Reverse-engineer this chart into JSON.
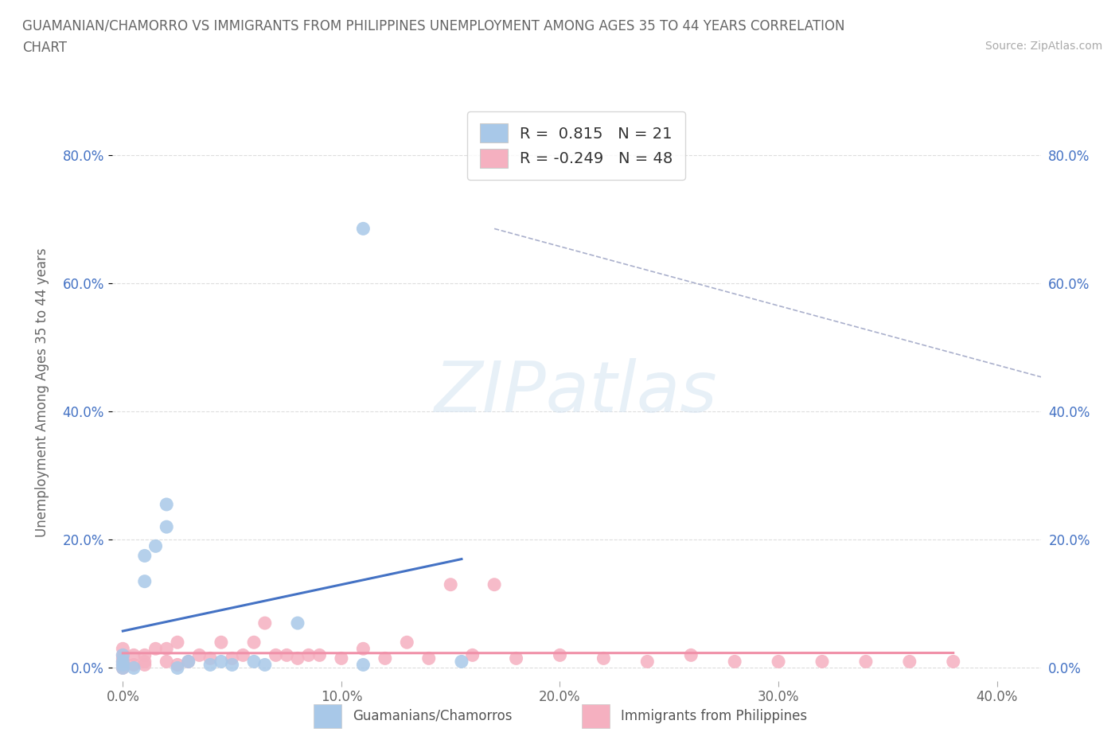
{
  "title_line1": "GUAMANIAN/CHAMORRO VS IMMIGRANTS FROM PHILIPPINES UNEMPLOYMENT AMONG AGES 35 TO 44 YEARS CORRELATION",
  "title_line2": "CHART",
  "source_text": "Source: ZipAtlas.com",
  "ylabel": "Unemployment Among Ages 35 to 44 years",
  "xlim": [
    -0.005,
    0.42
  ],
  "ylim": [
    -0.02,
    0.88
  ],
  "yticks": [
    0.0,
    0.2,
    0.4,
    0.6,
    0.8
  ],
  "ytick_labels": [
    "0.0%",
    "20.0%",
    "40.0%",
    "60.0%",
    "80.0%"
  ],
  "xticks": [
    0.0,
    0.1,
    0.2,
    0.3,
    0.4
  ],
  "xtick_labels": [
    "0.0%",
    "10.0%",
    "20.0%",
    "30.0%",
    "40.0%"
  ],
  "guam_color": "#a8c8e8",
  "phil_color": "#f5b0c0",
  "guam_line_color": "#4472c4",
  "phil_line_color": "#f090a8",
  "legend_guam_label": "Guamanians/Chamorros",
  "legend_phil_label": "Immigrants from Philippines",
  "R_guam": 0.815,
  "N_guam": 21,
  "R_phil": -0.249,
  "N_phil": 48,
  "watermark": "ZIPatlas",
  "background_color": "#ffffff",
  "guam_x": [
    0.0,
    0.0,
    0.0,
    0.0,
    0.005,
    0.01,
    0.01,
    0.015,
    0.02,
    0.02,
    0.025,
    0.03,
    0.04,
    0.045,
    0.05,
    0.06,
    0.065,
    0.08,
    0.11,
    0.11,
    0.155
  ],
  "guam_y": [
    0.0,
    0.005,
    0.01,
    0.02,
    0.0,
    0.135,
    0.175,
    0.19,
    0.22,
    0.255,
    0.0,
    0.01,
    0.005,
    0.01,
    0.005,
    0.01,
    0.005,
    0.07,
    0.005,
    0.685,
    0.01
  ],
  "phil_x": [
    0.0,
    0.0,
    0.0,
    0.0,
    0.0,
    0.0,
    0.005,
    0.005,
    0.01,
    0.01,
    0.01,
    0.015,
    0.02,
    0.02,
    0.025,
    0.025,
    0.03,
    0.035,
    0.04,
    0.045,
    0.05,
    0.055,
    0.06,
    0.065,
    0.07,
    0.075,
    0.08,
    0.085,
    0.09,
    0.1,
    0.11,
    0.12,
    0.13,
    0.14,
    0.15,
    0.16,
    0.17,
    0.18,
    0.2,
    0.22,
    0.24,
    0.26,
    0.28,
    0.3,
    0.32,
    0.34,
    0.36,
    0.38
  ],
  "phil_y": [
    0.0,
    0.005,
    0.01,
    0.015,
    0.02,
    0.03,
    0.005,
    0.02,
    0.005,
    0.01,
    0.02,
    0.03,
    0.01,
    0.03,
    0.005,
    0.04,
    0.01,
    0.02,
    0.015,
    0.04,
    0.015,
    0.02,
    0.04,
    0.07,
    0.02,
    0.02,
    0.015,
    0.02,
    0.02,
    0.015,
    0.03,
    0.015,
    0.04,
    0.015,
    0.13,
    0.02,
    0.13,
    0.015,
    0.02,
    0.015,
    0.01,
    0.02,
    0.01,
    0.01,
    0.01,
    0.01,
    0.01,
    0.01
  ]
}
